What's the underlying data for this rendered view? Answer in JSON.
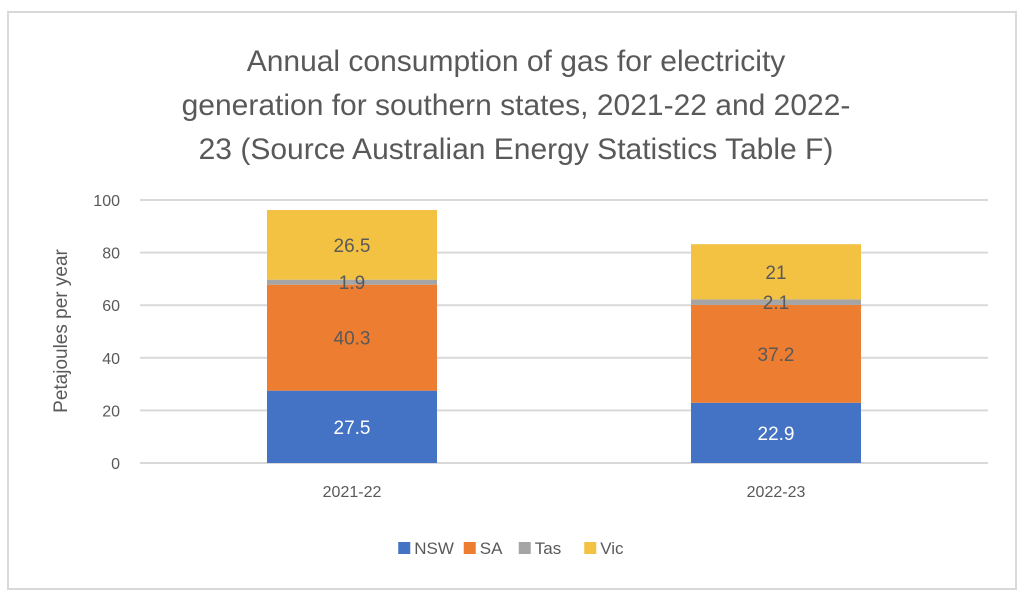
{
  "chart_data": {
    "type": "bar",
    "stacked": true,
    "title": "Annual consumption of gas for electricity generation for southern states, 2021-22 and 2022-23 (Source Australian Energy Statistics Table F)",
    "title_lines": [
      "Annual consumption of gas for electricity",
      "generation for southern states, 2021-22 and 2022-",
      "23 (Source Australian Energy Statistics Table F)"
    ],
    "xlabel": "",
    "ylabel": "Petajoules per year",
    "categories": [
      "2021-22",
      "2022-23"
    ],
    "series": [
      {
        "name": "NSW",
        "values": [
          27.5,
          22.9
        ],
        "labels": [
          "27.5",
          "22.9"
        ],
        "color": "#4472c4",
        "label_color": "#ffffff"
      },
      {
        "name": "SA",
        "values": [
          40.3,
          37.2
        ],
        "labels": [
          "40.3",
          "37.2"
        ],
        "color": "#ed7d31",
        "label_color": "#595959"
      },
      {
        "name": "Tas",
        "values": [
          1.9,
          2.1
        ],
        "labels": [
          "1.9",
          "2.1"
        ],
        "color": "#a5a5a5",
        "label_color": "#595959"
      },
      {
        "name": "Vic",
        "values": [
          26.5,
          21
        ],
        "labels": [
          "26.5",
          "21"
        ],
        "color": "#f4c242",
        "label_color": "#595959"
      }
    ],
    "ylim": [
      0,
      100
    ],
    "yticks": [
      0,
      20,
      40,
      60,
      80,
      100
    ],
    "ytick_labels": [
      "0",
      "20",
      "40",
      "60",
      "80",
      "100"
    ],
    "grid": true,
    "legend": "bottom-center"
  }
}
